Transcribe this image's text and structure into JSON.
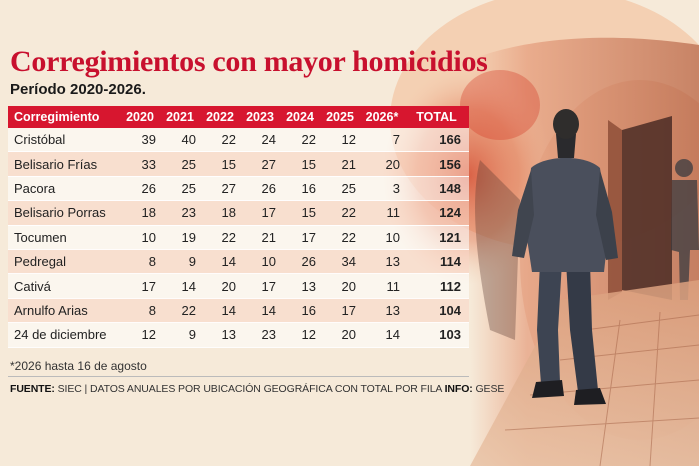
{
  "title": "Corregimientos con mayor homicidios",
  "subtitle": "Período 2020-2026.",
  "table": {
    "headers": [
      "Corregimiento",
      "2020",
      "2021",
      "2022",
      "2023",
      "2024",
      "2025",
      "2026*",
      "TOTAL"
    ],
    "rows": [
      [
        "Cristóbal",
        "39",
        "40",
        "22",
        "24",
        "22",
        "12",
        "7",
        "166"
      ],
      [
        "Belisario Frías",
        "33",
        "25",
        "15",
        "27",
        "15",
        "21",
        "20",
        "156"
      ],
      [
        "Pacora",
        "26",
        "25",
        "27",
        "26",
        "16",
        "25",
        "3",
        "148"
      ],
      [
        "Belisario Porras",
        "18",
        "23",
        "18",
        "17",
        "15",
        "22",
        "11",
        "124"
      ],
      [
        "Tocumen",
        "10",
        "19",
        "22",
        "21",
        "17",
        "22",
        "10",
        "121"
      ],
      [
        "Pedregal",
        "8",
        "9",
        "14",
        "10",
        "26",
        "34",
        "13",
        "114"
      ],
      [
        "Cativá",
        "17",
        "14",
        "20",
        "17",
        "13",
        "20",
        "11",
        "112"
      ],
      [
        "Arnulfo Arias",
        "8",
        "22",
        "14",
        "14",
        "16",
        "17",
        "13",
        "104"
      ],
      [
        "24 de diciembre",
        "12",
        "9",
        "13",
        "23",
        "12",
        "20",
        "14",
        "103"
      ]
    ]
  },
  "footnote": "*2026 hasta 16 de agosto",
  "source": {
    "label": "FUENTE:",
    "text": " SIEC | DATOS ANUALES POR UBICACIÓN GEOGRÁFICA CON TOTAL POR FILA ",
    "info_label": "INFO:",
    "info_text": " GESE"
  },
  "chart_data": {
    "type": "table",
    "title": "Corregimientos con mayor homicidios",
    "subtitle": "Período 2020-2026.",
    "columns": [
      "Corregimiento",
      "2020",
      "2021",
      "2022",
      "2023",
      "2024",
      "2025",
      "2026*",
      "TOTAL"
    ],
    "rows": [
      {
        "name": "Cristóbal",
        "values": [
          39,
          40,
          22,
          24,
          22,
          12,
          7
        ],
        "total": 166
      },
      {
        "name": "Belisario Frías",
        "values": [
          33,
          25,
          15,
          27,
          15,
          21,
          20
        ],
        "total": 156
      },
      {
        "name": "Pacora",
        "values": [
          26,
          25,
          27,
          26,
          16,
          25,
          3
        ],
        "total": 148
      },
      {
        "name": "Belisario Porras",
        "values": [
          18,
          23,
          18,
          17,
          15,
          22,
          11
        ],
        "total": 124
      },
      {
        "name": "Tocumen",
        "values": [
          10,
          19,
          22,
          21,
          17,
          22,
          10
        ],
        "total": 121
      },
      {
        "name": "Pedregal",
        "values": [
          8,
          9,
          14,
          10,
          26,
          34,
          13
        ],
        "total": 114
      },
      {
        "name": "Cativá",
        "values": [
          17,
          14,
          20,
          17,
          13,
          20,
          11
        ],
        "total": 112
      },
      {
        "name": "Arnulfo Arias",
        "values": [
          8,
          22,
          14,
          14,
          16,
          17,
          13
        ],
        "total": 104
      },
      {
        "name": "24 de diciembre",
        "values": [
          12,
          9,
          13,
          23,
          12,
          20,
          14
        ],
        "total": 103
      }
    ],
    "footnote": "*2026 hasta 16 de agosto"
  },
  "colors": {
    "accent": "#d7162f",
    "title": "#c8102e",
    "background": "#f6ead9"
  }
}
